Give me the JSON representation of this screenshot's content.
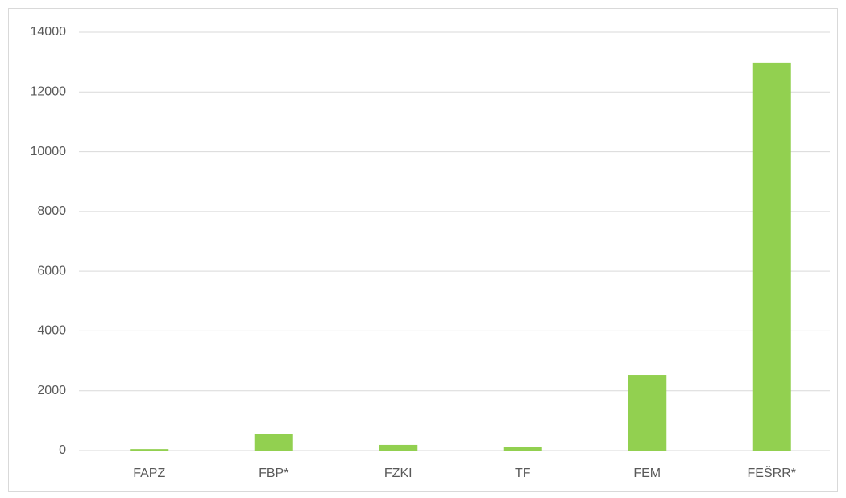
{
  "chart_data": {
    "type": "bar",
    "categories": [
      "FAPZ",
      "FBP*",
      "FZKI",
      "TF",
      "FEM",
      "FEŠRR*"
    ],
    "values": [
      50,
      540,
      190,
      110,
      2530,
      12980
    ],
    "color": "#92d050",
    "ylim": [
      0,
      14000
    ],
    "yticks": [
      0,
      2000,
      4000,
      6000,
      8000,
      10000,
      12000,
      14000
    ],
    "grid": true
  }
}
